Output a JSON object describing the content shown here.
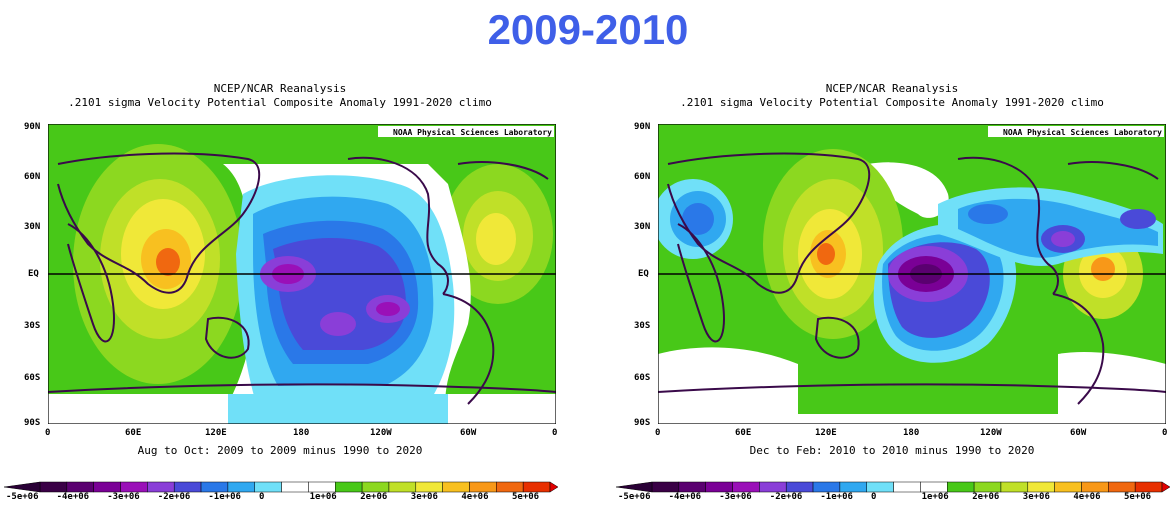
{
  "title": "2009-2010",
  "panels": [
    {
      "line1": "NCEP/NCAR Reanalysis",
      "line2": ".2101 sigma Velocity Potential  Composite Anomaly 1991-2020 climo",
      "credit": "NOAA Physical Sciences Laboratory",
      "caption": "Aug to Oct: 2009 to 2009 minus 1990 to 2020"
    },
    {
      "line1": "NCEP/NCAR Reanalysis",
      "line2": ".2101 sigma Velocity Potential  Composite Anomaly 1991-2020 climo",
      "credit": "NOAA Physical Sciences Laboratory",
      "caption": "Dec to Feb: 2010 to 2010 minus 1990 to 2020"
    }
  ],
  "lat_labels": [
    "90N",
    "60N",
    "30N",
    "EQ",
    "30S",
    "60S",
    "90S"
  ],
  "lon_labels": [
    "0",
    "60E",
    "120E",
    "180",
    "120W",
    "60W",
    "0"
  ],
  "colorbar": {
    "labels": [
      "-5e+06",
      "-4e+06",
      "-3e+06",
      "-2e+06",
      "-1e+06",
      "0",
      "1e+06",
      "2e+06",
      "3e+06",
      "4e+06",
      "5e+06"
    ],
    "colors": [
      "#3a0046",
      "#5a0070",
      "#7a0096",
      "#9a10b8",
      "#8a3ed8",
      "#4a4ad8",
      "#2a78e8",
      "#30a8f0",
      "#70e0f8",
      "#ffffff",
      "#ffffff",
      "#48c818",
      "#8cd820",
      "#c0e028",
      "#f0e838",
      "#f8c020",
      "#f89818",
      "#f06810",
      "#e83000"
    ]
  }
}
